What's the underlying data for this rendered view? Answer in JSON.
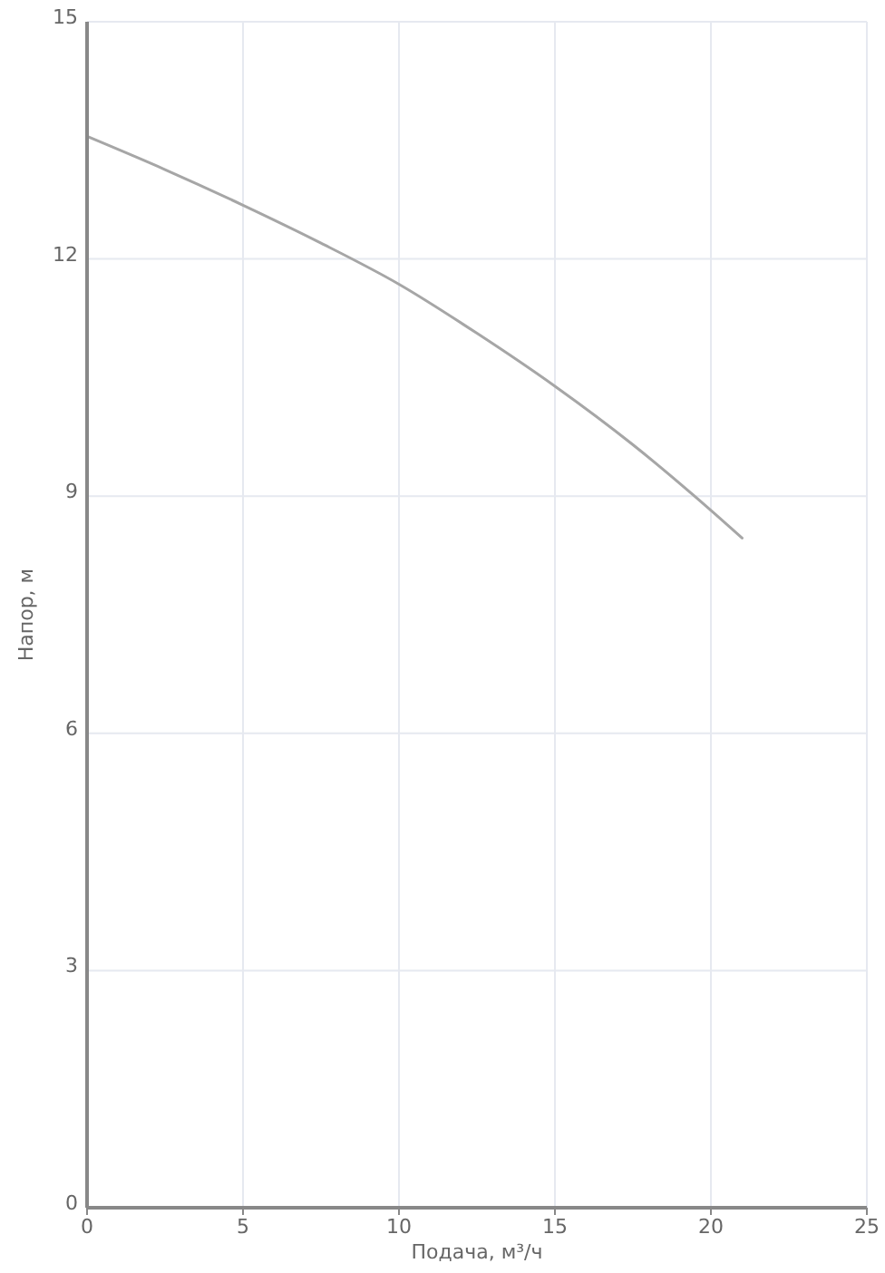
{
  "chart_data": {
    "type": "line",
    "xlabel": "Подача, м³/ч",
    "ylabel": "Напор, м",
    "x": [
      0,
      2.5,
      5,
      7.5,
      10,
      12.5,
      15,
      17.5,
      20,
      21
    ],
    "series": [
      {
        "color": "#a6a6a6",
        "values": [
          13.55,
          13.13,
          12.68,
          12.2,
          11.68,
          11.06,
          10.39,
          9.65,
          8.82,
          8.47
        ]
      }
    ],
    "xlim": [
      0,
      25
    ],
    "xticks": [
      0,
      5,
      10,
      15,
      20,
      25
    ],
    "ylim": [
      0,
      15
    ],
    "yticks": [
      0,
      3,
      6,
      9,
      12,
      15
    ],
    "grid": true,
    "marker": "none",
    "line_style": "solid"
  }
}
